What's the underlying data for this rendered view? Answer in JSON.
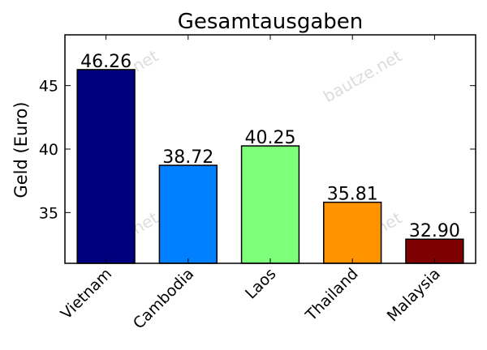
{
  "chart_data": {
    "type": "bar",
    "title": "Gesamtausgaben",
    "xlabel": "",
    "ylabel": "Geld (Euro)",
    "ylim": [
      31,
      49
    ],
    "yticks": [
      35,
      40,
      45
    ],
    "grid": false,
    "categories": [
      "Vietnam",
      "Cambodia",
      "Laos",
      "Thailand",
      "Malaysia"
    ],
    "values": [
      46.26,
      38.72,
      40.25,
      35.81,
      32.9
    ],
    "data_labels": [
      "46.26",
      "38.72",
      "40.25",
      "35.81",
      "32.90"
    ],
    "colors": [
      "#00007f",
      "#0080ff",
      "#7dff7a",
      "#ff9400",
      "#7f0000"
    ]
  },
  "watermark": {
    "text": "bautze.net"
  }
}
